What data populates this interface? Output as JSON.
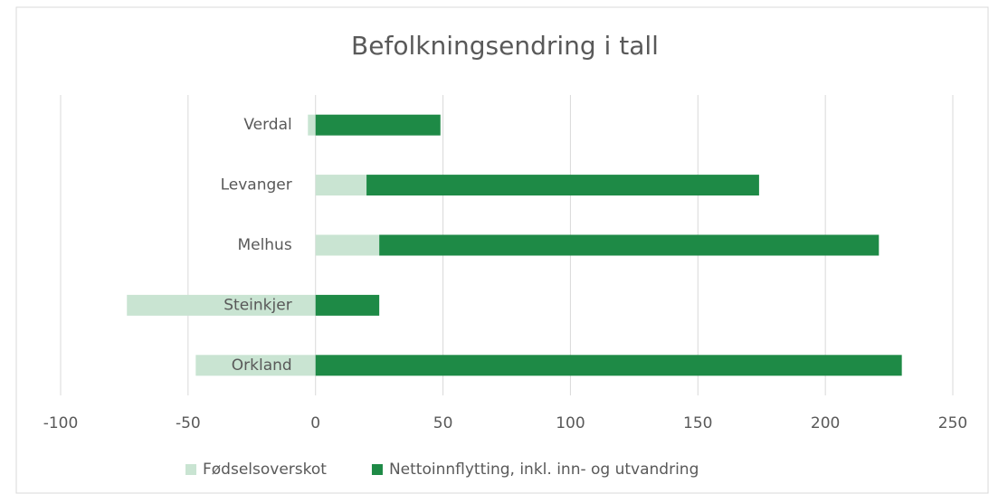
{
  "chart_data": {
    "type": "bar",
    "orientation": "horizontal",
    "stacked": true,
    "title": "Befolkningsendring i tall",
    "categories": [
      "Verdal",
      "Levanger",
      "Melhus",
      "Steinkjer",
      "Orkland"
    ],
    "series": [
      {
        "name": "Fødselsoverskot",
        "color": "#c9e4d2",
        "values": [
          -3,
          20,
          25,
          -74,
          -47
        ]
      },
      {
        "name": "Nettoinnflytting, inkl. inn- og utvandring",
        "color": "#1e8a46",
        "values": [
          49,
          154,
          196,
          25,
          230
        ]
      }
    ],
    "xlim": [
      -100,
      250
    ],
    "xticks": [
      -100,
      -50,
      0,
      50,
      100,
      150,
      200,
      250
    ],
    "grid": true,
    "legend": "bottom"
  }
}
